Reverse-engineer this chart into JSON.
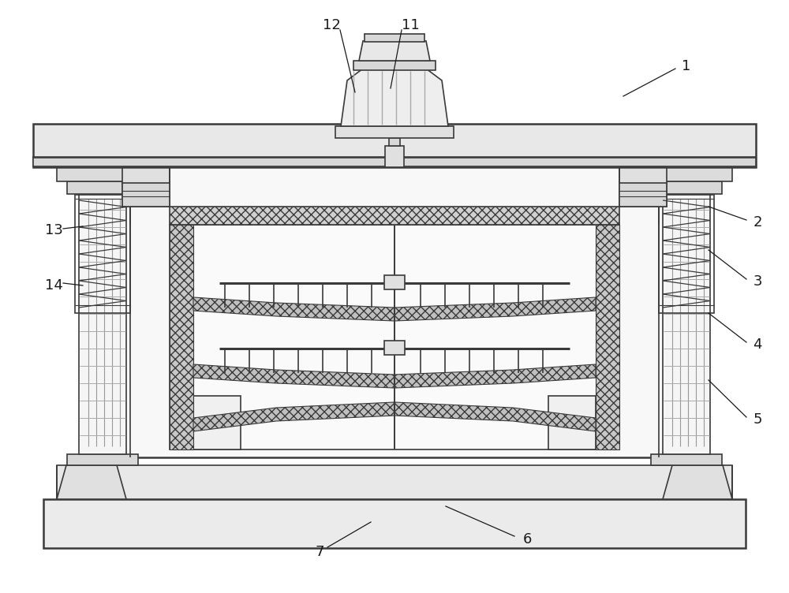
{
  "bg_color": "#ffffff",
  "lc": "#3a3a3a",
  "gray1": "#f0f0f0",
  "gray2": "#e0e0e0",
  "gray3": "#d0d0d0",
  "gray4": "#c0c0c0",
  "gray5": "#b0b0b0"
}
